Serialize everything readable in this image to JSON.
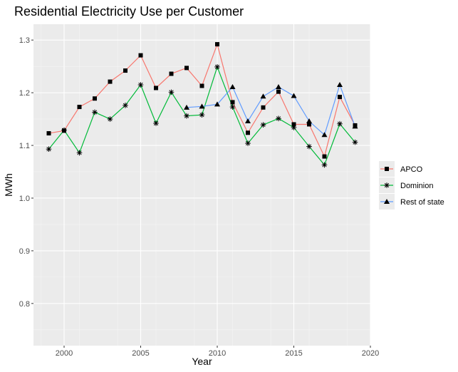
{
  "chart_data": {
    "type": "line",
    "title": "Residential Electricity Use per Customer",
    "xlabel": "Year",
    "ylabel": "MWh",
    "xlim": [
      1998,
      2020
    ],
    "ylim": [
      0.72,
      1.33
    ],
    "x_ticks": [
      2000,
      2005,
      2010,
      2015,
      2020
    ],
    "y_ticks": [
      0.8,
      0.9,
      1.0,
      1.1,
      1.2,
      1.3
    ],
    "x_tick_labels": [
      "2000",
      "2005",
      "2010",
      "2015",
      "2020"
    ],
    "y_tick_labels": [
      "0.8",
      "0.9",
      "1.0",
      "1.1",
      "1.2",
      "1.3"
    ],
    "grid": true,
    "legend_position": "right",
    "series": [
      {
        "name": "APCO",
        "color": "#F8766D",
        "marker": "square",
        "x": [
          1999,
          2000,
          2001,
          2002,
          2003,
          2004,
          2005,
          2006,
          2007,
          2008,
          2009,
          2010,
          2011,
          2012,
          2013,
          2014,
          2015,
          2016,
          2017,
          2018,
          2019
        ],
        "y": [
          1.123,
          1.128,
          1.173,
          1.189,
          1.221,
          1.242,
          1.271,
          1.209,
          1.236,
          1.247,
          1.213,
          1.292,
          1.182,
          1.124,
          1.172,
          1.202,
          1.14,
          1.14,
          1.079,
          1.192,
          1.138
        ]
      },
      {
        "name": "Dominion",
        "color": "#00BA38",
        "marker": "asterisk",
        "x": [
          1999,
          2000,
          2001,
          2002,
          2003,
          2004,
          2005,
          2006,
          2007,
          2008,
          2009,
          2010,
          2011,
          2012,
          2013,
          2014,
          2015,
          2016,
          2017,
          2018,
          2019
        ],
        "y": [
          1.093,
          1.129,
          1.086,
          1.163,
          1.15,
          1.176,
          1.215,
          1.142,
          1.201,
          1.156,
          1.158,
          1.249,
          1.173,
          1.104,
          1.139,
          1.151,
          1.134,
          1.098,
          1.063,
          1.141,
          1.106
        ]
      },
      {
        "name": "Rest of state",
        "color": "#619CFF",
        "marker": "triangle",
        "x": [
          2008,
          2009,
          2010,
          2011,
          2012,
          2013,
          2014,
          2015,
          2016,
          2017,
          2018,
          2019
        ],
        "y": [
          1.172,
          1.174,
          1.178,
          1.211,
          1.146,
          1.193,
          1.211,
          1.194,
          1.146,
          1.12,
          1.215,
          1.136
        ]
      }
    ]
  }
}
